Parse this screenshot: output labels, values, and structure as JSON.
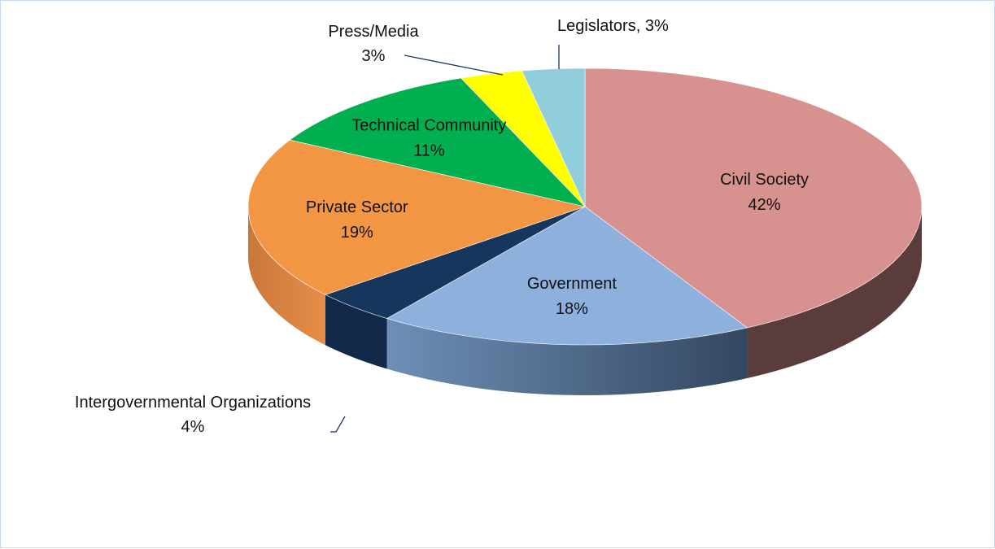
{
  "chart_data": {
    "type": "pie",
    "style": "3d",
    "title": "",
    "slices": [
      {
        "name": "Civil Society",
        "percent_label": "42%",
        "value": 42,
        "color": "#d79290"
      },
      {
        "name": "Government",
        "percent_label": "18%",
        "value": 18,
        "color": "#8db0dd"
      },
      {
        "name": "Intergovernmental Organizations",
        "percent_label": "4%",
        "value": 4,
        "color": "#17365d"
      },
      {
        "name": "Private Sector",
        "percent_label": "19%",
        "value": 19,
        "color": "#f39644"
      },
      {
        "name": "Technical Community",
        "percent_label": "11%",
        "value": 11,
        "color": "#00b050"
      },
      {
        "name": "Press/Media",
        "percent_label": "3%",
        "value": 3,
        "color": "#ffff00"
      },
      {
        "name": "Legislators",
        "percent_label": "3%",
        "value": 3,
        "color": "#92cddc"
      }
    ],
    "legend": "none"
  }
}
